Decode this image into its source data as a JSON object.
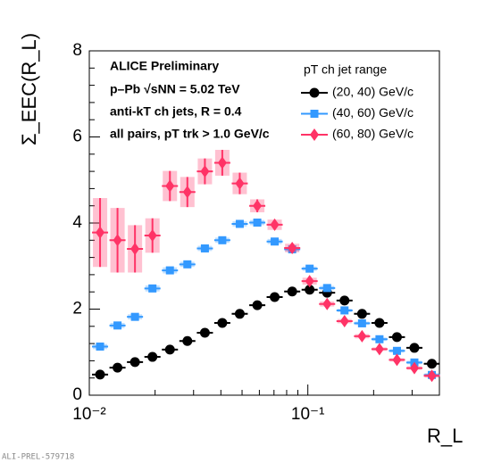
{
  "chart_data": {
    "type": "scatter",
    "x_label": "R_L",
    "y_label": "Σ_EEC(R_L)",
    "annotations": [
      "ALICE Preliminary",
      "p–Pb √sNN = 5.02 TeV",
      "anti-kT ch jets, R = 0.4",
      "all pairs, pT trk > 1.0 GeV/c"
    ],
    "legend_title": "pT ch jet range",
    "footer": "ALI-PREL-579718",
    "x_log": true,
    "xlim": [
      0.01,
      0.4
    ],
    "xticks": [
      {
        "value": 0.01,
        "label": "10⁻²"
      },
      {
        "value": 0.1,
        "label": "10⁻¹"
      }
    ],
    "ylim": [
      0,
      8
    ],
    "yticks": [
      0,
      2,
      4,
      6,
      8
    ],
    "x": [
      0.0112,
      0.01346,
      0.01618,
      0.01945,
      0.02338,
      0.0281,
      0.0338,
      0.0406,
      0.0488,
      0.0587,
      0.0705,
      0.0848,
      0.1019,
      0.1225,
      0.1472,
      0.177,
      0.2127,
      0.2557,
      0.3073,
      0.3694
    ],
    "series": [
      {
        "name": "(20, 40) GeV/c",
        "color": "#000000",
        "marker": "circle",
        "values": [
          0.48,
          0.64,
          0.77,
          0.89,
          1.06,
          1.26,
          1.45,
          1.68,
          1.89,
          2.09,
          2.28,
          2.41,
          2.45,
          2.38,
          2.2,
          1.89,
          1.68,
          1.35,
          1.1,
          0.73
        ],
        "errors": [
          0.02,
          0.02,
          0.02,
          0.02,
          0.02,
          0.02,
          0.02,
          0.02,
          0.02,
          0.02,
          0.02,
          0.02,
          0.02,
          0.02,
          0.02,
          0.02,
          0.02,
          0.02,
          0.02,
          0.02
        ]
      },
      {
        "name": "(40, 60) GeV/c",
        "color": "#3399ff",
        "marker": "square",
        "values": [
          1.13,
          1.62,
          1.82,
          2.48,
          2.9,
          3.04,
          3.41,
          3.6,
          3.98,
          4.01,
          3.57,
          3.39,
          2.94,
          2.49,
          1.97,
          1.67,
          1.3,
          1.03,
          0.76,
          0.47
        ],
        "errors": [
          0.06,
          0.06,
          0.06,
          0.07,
          0.07,
          0.06,
          0.06,
          0.06,
          0.06,
          0.06,
          0.06,
          0.05,
          0.05,
          0.05,
          0.04,
          0.04,
          0.04,
          0.04,
          0.04,
          0.04
        ]
      },
      {
        "name": "(60, 80) GeV/c",
        "color": "#ff3366",
        "marker": "diamond",
        "values": [
          3.78,
          3.6,
          3.4,
          3.71,
          4.86,
          4.72,
          5.2,
          5.4,
          4.92,
          4.4,
          3.96,
          3.42,
          2.65,
          2.12,
          1.72,
          1.37,
          1.07,
          0.82,
          0.63,
          0.45
        ],
        "errors": [
          0.8,
          0.75,
          0.55,
          0.4,
          0.35,
          0.35,
          0.3,
          0.3,
          0.25,
          0.15,
          0.12,
          0.1,
          0.08,
          0.06,
          0.05,
          0.05,
          0.04,
          0.04,
          0.04,
          0.04
        ]
      }
    ]
  }
}
